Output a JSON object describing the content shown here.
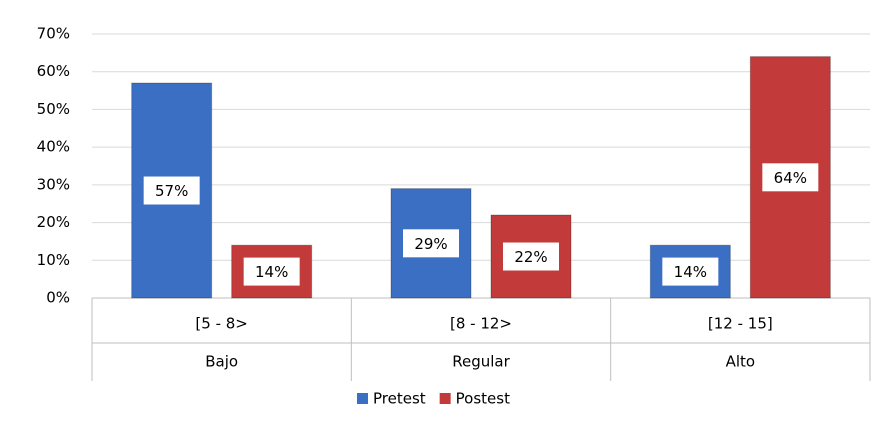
{
  "chart_data": {
    "type": "bar",
    "categories": [
      "[5 - 8>",
      "[8 - 12>",
      "[12 - 15]"
    ],
    "groups": [
      "Bajo",
      "Regular",
      "Alto"
    ],
    "series": [
      {
        "name": "Pretest",
        "color": "#3b6fc3",
        "values": [
          57,
          29,
          14
        ],
        "value_labels": [
          "57%",
          "29%",
          "14%"
        ]
      },
      {
        "name": "Postest",
        "color": "#c23a3a",
        "values": [
          14,
          22,
          64
        ],
        "value_labels": [
          "14%",
          "22%",
          "64%"
        ]
      }
    ],
    "ylim": [
      0,
      70
    ],
    "yticks": [
      {
        "value": 0,
        "label": "0%"
      },
      {
        "value": 10,
        "label": "10%"
      },
      {
        "value": 20,
        "label": "20%"
      },
      {
        "value": 30,
        "label": "30%"
      },
      {
        "value": 40,
        "label": "40%"
      },
      {
        "value": 50,
        "label": "50%"
      },
      {
        "value": 60,
        "label": "60%"
      },
      {
        "value": 70,
        "label": "70%"
      }
    ],
    "grid": true,
    "legend": "bottom"
  }
}
